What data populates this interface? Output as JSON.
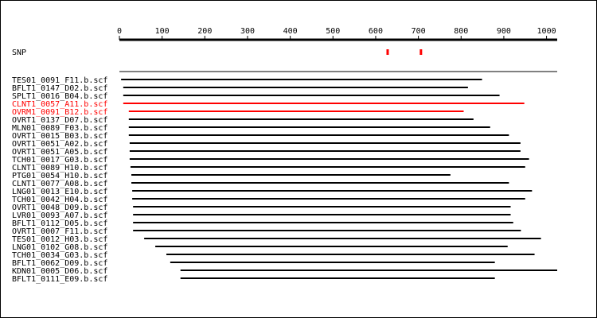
{
  "chart_data": {
    "type": "alignment",
    "xlim": [
      0,
      1025
    ],
    "xticks": [
      0,
      100,
      200,
      300,
      400,
      500,
      600,
      700,
      800,
      900,
      1000
    ],
    "snp": {
      "label": "SNP",
      "positions": [
        628,
        706
      ],
      "color": "#ff0000"
    },
    "default_color": "#000000",
    "reads": [
      {
        "name": "TES01_0091_F11.b.scf",
        "start": 4,
        "end": 849
      },
      {
        "name": "BFLT1_0147_D02.b.scf",
        "start": 9,
        "end": 816
      },
      {
        "name": "SPLT1_0016_B04.b.scf",
        "start": 9,
        "end": 890
      },
      {
        "name": "CLNT1_0057_A11.b.scf",
        "start": 9,
        "end": 948,
        "color": "#ff0000"
      },
      {
        "name": "OVRM1_0091_B12.b.scf",
        "start": 22,
        "end": 806,
        "color": "#ff0000"
      },
      {
        "name": "OVRT1_0137_D07.b.scf",
        "start": 22,
        "end": 829
      },
      {
        "name": "MLN01_0089_F03.b.scf",
        "start": 22,
        "end": 868
      },
      {
        "name": "OVRT1_0015_B03.b.scf",
        "start": 22,
        "end": 912
      },
      {
        "name": "OVRT1_0051_A02.b.scf",
        "start": 24,
        "end": 939
      },
      {
        "name": "OVRT1_0051_A05.b.scf",
        "start": 24,
        "end": 939
      },
      {
        "name": "TCH01_0017_G03.b.scf",
        "start": 24,
        "end": 959
      },
      {
        "name": "CLNT1_0089_H10.b.scf",
        "start": 26,
        "end": 950
      },
      {
        "name": "PTG01_0054_H10.b.scf",
        "start": 28,
        "end": 775
      },
      {
        "name": "CLNT1_0077_A08.b.scf",
        "start": 28,
        "end": 912
      },
      {
        "name": "LNG01_0013_E10.b.scf",
        "start": 30,
        "end": 966
      },
      {
        "name": "TCH01_0042_H04.b.scf",
        "start": 30,
        "end": 950
      },
      {
        "name": "OVRT1_0048_D09.b.scf",
        "start": 32,
        "end": 916
      },
      {
        "name": "LVR01_0093_A07.b.scf",
        "start": 32,
        "end": 916
      },
      {
        "name": "BFLT1_0112_D05.b.scf",
        "start": 32,
        "end": 922
      },
      {
        "name": "OVRT1_0007_F11.b.scf",
        "start": 32,
        "end": 940
      },
      {
        "name": "TES01_0012_H03.b.scf",
        "start": 58,
        "end": 987
      },
      {
        "name": "LNG01_0102_G08.b.scf",
        "start": 84,
        "end": 909
      },
      {
        "name": "TCH01_0034_G03.b.scf",
        "start": 110,
        "end": 972
      },
      {
        "name": "BFLT1_0062_D09.b.scf",
        "start": 119,
        "end": 879
      },
      {
        "name": "KDN01_0005_D06.b.scf",
        "start": 143,
        "end": 1025
      },
      {
        "name": "BFLT1_0111_E09.b.scf",
        "start": 143,
        "end": 879
      }
    ]
  }
}
